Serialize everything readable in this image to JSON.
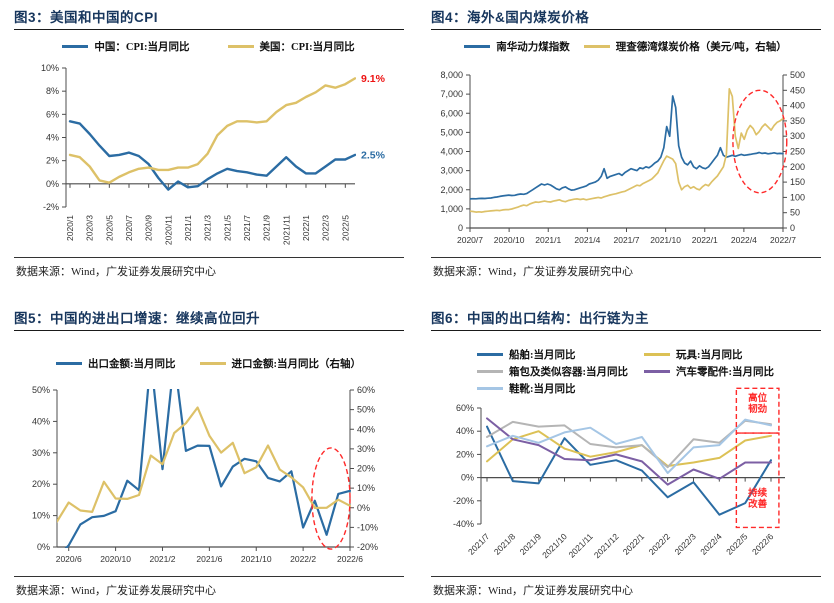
{
  "page": {
    "source_note": "数据来源：Wind，广发证券发展研究中心",
    "title_color": "#17365D",
    "annotation_red": "#EE1111"
  },
  "chart_data": [
    {
      "id": "fig3",
      "type": "line",
      "title": "图3：美国和中国的CPI",
      "legend": [
        {
          "label": "中国：CPI:当月同比",
          "color": "#2B6CA3"
        },
        {
          "label": "美国：CPI:当月同比",
          "color": "#DDC168"
        }
      ],
      "categories": [
        "2020/1",
        "2020/2",
        "2020/3",
        "2020/4",
        "2020/5",
        "2020/6",
        "2020/7",
        "2020/8",
        "2020/9",
        "2020/10",
        "2020/11",
        "2020/12",
        "2021/1",
        "2021/2",
        "2021/3",
        "2021/4",
        "2021/5",
        "2021/6",
        "2021/7",
        "2021/8",
        "2021/9",
        "2021/10",
        "2021/11",
        "2021/12",
        "2022/1",
        "2022/2",
        "2022/3",
        "2022/4",
        "2022/5",
        "2022/6"
      ],
      "xticks": [
        {
          "f": 0.0,
          "label": "2020/1"
        },
        {
          "f": 0.069,
          "label": "2020/3"
        },
        {
          "f": 0.138,
          "label": "2020/5"
        },
        {
          "f": 0.207,
          "label": "2020/7"
        },
        {
          "f": 0.276,
          "label": "2020/9"
        },
        {
          "f": 0.345,
          "label": "2020/11"
        },
        {
          "f": 0.414,
          "label": "2021/1"
        },
        {
          "f": 0.483,
          "label": "2021/3"
        },
        {
          "f": 0.552,
          "label": "2021/5"
        },
        {
          "f": 0.621,
          "label": "2021/7"
        },
        {
          "f": 0.69,
          "label": "2021/9"
        },
        {
          "f": 0.759,
          "label": "2021/11"
        },
        {
          "f": 0.828,
          "label": "2022/1"
        },
        {
          "f": 0.897,
          "label": "2022/3"
        },
        {
          "f": 0.966,
          "label": "2022/5"
        }
      ],
      "ylim": [
        -2,
        10
      ],
      "yticks": [
        {
          "v": 10,
          "label": "10%"
        },
        {
          "v": 8,
          "label": "8%"
        },
        {
          "v": 6,
          "label": "6%"
        },
        {
          "v": 4,
          "label": "4%"
        },
        {
          "v": 2,
          "label": "2%"
        },
        {
          "v": 0,
          "label": "0%"
        },
        {
          "v": -2,
          "label": "-2%"
        }
      ],
      "xaxis_at": 0,
      "series": [
        {
          "name": "中国：CPI:当月同比",
          "axis": "left",
          "color": "#2B6CA3",
          "values": [
            5.4,
            5.2,
            4.3,
            3.3,
            2.4,
            2.5,
            2.7,
            2.4,
            1.7,
            0.5,
            -0.5,
            0.2,
            -0.3,
            -0.2,
            0.4,
            0.9,
            1.3,
            1.1,
            1.0,
            0.8,
            0.7,
            1.5,
            2.3,
            1.5,
            0.9,
            0.9,
            1.5,
            2.1,
            2.1,
            2.5
          ]
        },
        {
          "name": "美国：CPI:当月同比",
          "axis": "left",
          "color": "#DDC168",
          "values": [
            2.5,
            2.3,
            1.5,
            0.3,
            0.1,
            0.6,
            1.0,
            1.3,
            1.4,
            1.2,
            1.2,
            1.4,
            1.4,
            1.7,
            2.6,
            4.2,
            5.0,
            5.4,
            5.4,
            5.3,
            5.4,
            6.2,
            6.8,
            7.0,
            7.5,
            7.9,
            8.5,
            8.3,
            8.6,
            9.1
          ]
        }
      ],
      "annotations": [
        {
          "type": "label",
          "text": "9.1%",
          "v": 9.1,
          "color": "#EE1111"
        },
        {
          "type": "label",
          "text": "2.5%",
          "v": 2.5,
          "color": "#2B6CA3"
        }
      ]
    },
    {
      "id": "fig4",
      "type": "line",
      "title": "图4：海外&国内煤炭价格",
      "legend": [
        {
          "label": "南华动力煤指数",
          "color": "#2B6CA3"
        },
        {
          "label": "理查德湾煤炭价格（美元/吨，右轴）",
          "color": "#DDC168"
        }
      ],
      "x_range": [
        "2020/7",
        "2022/7"
      ],
      "xticks": [
        {
          "f": 0.0,
          "label": "2020/7"
        },
        {
          "f": 0.125,
          "label": "2020/10"
        },
        {
          "f": 0.25,
          "label": "2021/1"
        },
        {
          "f": 0.375,
          "label": "2021/4"
        },
        {
          "f": 0.5,
          "label": "2021/7"
        },
        {
          "f": 0.625,
          "label": "2021/10"
        },
        {
          "f": 0.75,
          "label": "2022/1"
        },
        {
          "f": 0.875,
          "label": "2022/4"
        },
        {
          "f": 1.0,
          "label": "2022/7"
        }
      ],
      "ylim": [
        0,
        8000
      ],
      "yticks": [
        {
          "v": 8000,
          "label": "8,000"
        },
        {
          "v": 7000,
          "label": "7,000"
        },
        {
          "v": 6000,
          "label": "6,000"
        },
        {
          "v": 5000,
          "label": "5,000"
        },
        {
          "v": 4000,
          "label": "4,000"
        },
        {
          "v": 3000,
          "label": "3,000"
        },
        {
          "v": 2000,
          "label": "2,000"
        },
        {
          "v": 1000,
          "label": "1,000"
        },
        {
          "v": 0,
          "label": "0"
        }
      ],
      "ylim_right": [
        0,
        500
      ],
      "yticks_right": [
        {
          "v": 500,
          "label": "500"
        },
        {
          "v": 450,
          "label": "450"
        },
        {
          "v": 400,
          "label": "400"
        },
        {
          "v": 350,
          "label": "350"
        },
        {
          "v": 300,
          "label": "300"
        },
        {
          "v": 250,
          "label": "250"
        },
        {
          "v": 200,
          "label": "200"
        },
        {
          "v": 150,
          "label": "150"
        },
        {
          "v": 100,
          "label": "100"
        },
        {
          "v": 50,
          "label": "50"
        },
        {
          "v": 0,
          "label": "0"
        }
      ],
      "series": [
        {
          "name": "南华动力煤指数",
          "axis": "left",
          "color": "#2B6CA3",
          "values": [
            1520,
            1530,
            1525,
            1540,
            1550,
            1545,
            1560,
            1570,
            1600,
            1620,
            1650,
            1680,
            1700,
            1720,
            1700,
            1710,
            1750,
            1780,
            1760,
            1800,
            1900,
            2000,
            2100,
            2200,
            2300,
            2250,
            2300,
            2250,
            2150,
            2050,
            2000,
            2100,
            2150,
            2050,
            1980,
            2000,
            2050,
            2100,
            2150,
            2200,
            2300,
            2350,
            2400,
            2500,
            2700,
            3100,
            2600,
            2700,
            2750,
            2800,
            2850,
            2750,
            2900,
            3000,
            3100,
            3050,
            3000,
            3150,
            3100,
            3200,
            3150,
            3250,
            3400,
            3500,
            3700,
            4200,
            5300,
            4800,
            6900,
            6300,
            4300,
            3700,
            3400,
            3300,
            3500,
            3200,
            3100,
            3250,
            3150,
            3100,
            3200,
            3400,
            3600,
            3800,
            4200,
            3800,
            3700,
            3750,
            3800,
            3750,
            3800,
            3850,
            3800,
            3820,
            3850,
            3880,
            3900,
            3950,
            3900,
            3920,
            3880,
            3900,
            3930,
            3890,
            3900,
            3890
          ]
        },
        {
          "name": "理查德湾煤炭价格（美元/吨，右轴）",
          "axis": "right",
          "color": "#DDC168",
          "values": [
            55,
            54,
            52,
            53,
            52,
            54,
            55,
            56,
            57,
            58,
            57,
            59,
            60,
            60,
            62,
            65,
            68,
            72,
            75,
            73,
            78,
            82,
            85,
            84,
            86,
            88,
            86,
            85,
            88,
            90,
            92,
            88,
            86,
            90,
            92,
            94,
            95,
            93,
            95,
            92,
            94,
            96,
            98,
            100,
            98,
            102,
            105,
            108,
            110,
            112,
            115,
            118,
            120,
            125,
            130,
            135,
            140,
            138,
            145,
            150,
            155,
            160,
            170,
            180,
            200,
            220,
            235,
            230,
            225,
            210,
            150,
            125,
            135,
            140,
            130,
            135,
            128,
            125,
            135,
            142,
            138,
            150,
            160,
            170,
            185,
            200,
            240,
            455,
            430,
            300,
            260,
            310,
            290,
            320,
            335,
            325,
            305,
            315,
            330,
            340,
            330,
            320,
            335,
            345,
            350,
            358
          ]
        }
      ],
      "annotations": [
        {
          "type": "ellipse",
          "cx": 0.926,
          "cy": 0.435,
          "rx": 0.086,
          "ry": 0.335,
          "color": "#FF2A2A"
        }
      ]
    },
    {
      "id": "fig5",
      "type": "line",
      "title": "图5：中国的进出口增速：继续高位回升",
      "legend": [
        {
          "label": "出口金额:当月同比",
          "color": "#2B6CA3"
        },
        {
          "label": "进口金额:当月同比（右轴）",
          "color": "#DDC168"
        }
      ],
      "categories": [
        "2020/5",
        "2020/6",
        "2020/7",
        "2020/8",
        "2020/9",
        "2020/10",
        "2020/11",
        "2020/12",
        "2021/1",
        "2021/2",
        "2021/3",
        "2021/4",
        "2021/5",
        "2021/6",
        "2021/7",
        "2021/8",
        "2021/9",
        "2021/10",
        "2021/11",
        "2021/12",
        "2022/1",
        "2022/2",
        "2022/3",
        "2022/4",
        "2022/5",
        "2022/6"
      ],
      "xticks": [
        {
          "f": 0.04,
          "label": "2020/6"
        },
        {
          "f": 0.2,
          "label": "2020/10"
        },
        {
          "f": 0.36,
          "label": "2021/2"
        },
        {
          "f": 0.52,
          "label": "2021/6"
        },
        {
          "f": 0.68,
          "label": "2021/10"
        },
        {
          "f": 0.84,
          "label": "2022/2"
        },
        {
          "f": 1.0,
          "label": "2022/6"
        }
      ],
      "ylim": [
        0,
        50
      ],
      "yticks": [
        {
          "v": 50,
          "label": "50%"
        },
        {
          "v": 40,
          "label": "40%"
        },
        {
          "v": 30,
          "label": "30%"
        },
        {
          "v": 20,
          "label": "20%"
        },
        {
          "v": 10,
          "label": "10%"
        },
        {
          "v": 0,
          "label": "0%"
        }
      ],
      "ylim_right": [
        -20,
        60
      ],
      "yticks_right": [
        {
          "v": 60,
          "label": "60%"
        },
        {
          "v": 50,
          "label": "50%"
        },
        {
          "v": 40,
          "label": "40%"
        },
        {
          "v": 30,
          "label": "30%"
        },
        {
          "v": 20,
          "label": "20%"
        },
        {
          "v": 10,
          "label": "10%"
        },
        {
          "v": 0,
          "label": "0%"
        },
        {
          "v": -10,
          "label": "-10%"
        },
        {
          "v": -20,
          "label": "-20%"
        }
      ],
      "series": [
        {
          "name": "出口金额:当月同比",
          "axis": "left",
          "color": "#2B6CA3",
          "values": [
            -3.3,
            0.5,
            7.2,
            9.5,
            9.9,
            11.4,
            21.1,
            18.1,
            60,
            24.8,
            60,
            30.6,
            32.3,
            32.2,
            19.3,
            25.6,
            28.1,
            27.3,
            22,
            20.9,
            24.1,
            6.2,
            14.7,
            3.9,
            16.9,
            17.9
          ]
        },
        {
          "name": "进口金额:当月同比（右轴）",
          "axis": "right",
          "color": "#DDC168",
          "values": [
            -7,
            2.7,
            -1.4,
            -2.1,
            13.2,
            4.7,
            4.5,
            6.5,
            26.6,
            22.2,
            38.1,
            43.1,
            51.1,
            36.7,
            28.1,
            33.1,
            17.6,
            20.6,
            31.7,
            19.5,
            15.5,
            10.4,
            -0.1,
            0,
            4.1,
            1
          ]
        }
      ],
      "annotations": [
        {
          "type": "ellipse",
          "cx": 0.935,
          "cy": 0.691,
          "rx": 0.065,
          "ry": 0.322,
          "color": "#FF2A2A"
        }
      ]
    },
    {
      "id": "fig6",
      "type": "line",
      "title": "图6：中国的出口结构：出行链为主",
      "legend": [
        {
          "label": "船舶:当月同比",
          "color": "#2B6CA3"
        },
        {
          "label": "玩具:当月同比",
          "color": "#DCC155"
        },
        {
          "label": "箱包及类似容器:当月同比",
          "color": "#B5B5B5"
        },
        {
          "label": "汽车零配件:当月同比",
          "color": "#7C5FA4"
        },
        {
          "label": "鞋靴:当月同比",
          "color": "#A5C6E5"
        }
      ],
      "categories": [
        "2021/7",
        "2021/8",
        "2021/9",
        "2021/10",
        "2021/11",
        "2021/12",
        "2022/1",
        "2022/2",
        "2022/3",
        "2022/4",
        "2022/5",
        "2022/6"
      ],
      "xticks": [
        {
          "f": 0.0,
          "label": "2021/7"
        },
        {
          "f": 0.091,
          "label": "2021/8"
        },
        {
          "f": 0.182,
          "label": "2021/9"
        },
        {
          "f": 0.273,
          "label": "2021/10"
        },
        {
          "f": 0.364,
          "label": "2021/11"
        },
        {
          "f": 0.455,
          "label": "2021/12"
        },
        {
          "f": 0.545,
          "label": "2022/1"
        },
        {
          "f": 0.636,
          "label": "2022/2"
        },
        {
          "f": 0.727,
          "label": "2022/3"
        },
        {
          "f": 0.818,
          "label": "2022/4"
        },
        {
          "f": 0.909,
          "label": "2022/5"
        },
        {
          "f": 1.0,
          "label": "2022/6"
        }
      ],
      "ylim": [
        -40,
        60
      ],
      "yticks": [
        {
          "v": 60,
          "label": "60%"
        },
        {
          "v": 40,
          "label": "40%"
        },
        {
          "v": 20,
          "label": "20%"
        },
        {
          "v": 0,
          "label": "0%"
        },
        {
          "v": -20,
          "label": "-20%"
        },
        {
          "v": -40,
          "label": "-40%"
        }
      ],
      "xaxis_at": 0,
      "series": [
        {
          "name": "船舶:当月同比",
          "axis": "left",
          "color": "#2B6CA3",
          "values": [
            44,
            -3,
            -5,
            34,
            11,
            15,
            6,
            -17,
            -4,
            -32,
            -22,
            15
          ]
        },
        {
          "name": "玩具:当月同比",
          "axis": "left",
          "color": "#DCC155",
          "values": [
            14,
            33,
            40,
            25,
            18,
            22,
            28,
            10,
            13,
            17,
            32,
            36
          ]
        },
        {
          "name": "箱包及类似容器:当月同比",
          "axis": "left",
          "color": "#B5B5B5",
          "values": [
            35,
            48,
            44,
            45,
            29,
            26,
            28,
            9,
            33,
            30,
            49,
            46
          ]
        },
        {
          "name": "汽车零配件:当月同比",
          "axis": "left",
          "color": "#7C5FA4",
          "values": [
            51,
            33,
            28,
            16,
            15,
            20,
            14,
            -6,
            7,
            -1,
            13,
            13
          ]
        },
        {
          "name": "鞋靴:当月同比",
          "axis": "left",
          "color": "#A5C6E5",
          "values": [
            27,
            36,
            30,
            39,
            43,
            29,
            35,
            4,
            26,
            28,
            50,
            45
          ]
        }
      ],
      "annotations": [
        {
          "type": "box",
          "x0": 0.84,
          "y0": -0.17,
          "x1": 0.98,
          "y1": 0.216,
          "ty": -0.06,
          "color": "#FF2A2A",
          "lines": [
            "高位",
            "韧劲"
          ]
        },
        {
          "type": "box",
          "x0": 0.84,
          "y0": 0.216,
          "x1": 0.98,
          "y1": 1.03,
          "ty": 0.76,
          "color": "#FF2A2A",
          "lines": [
            "持续",
            "改善"
          ]
        }
      ]
    }
  ]
}
